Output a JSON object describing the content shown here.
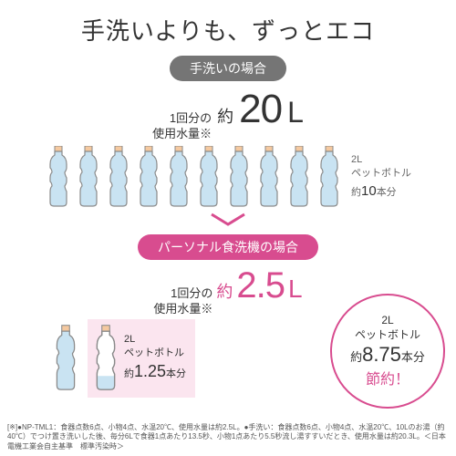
{
  "title": "手洗いよりも、ずっとエコ",
  "colors": {
    "gray": "#757575",
    "pink": "#d84c8f",
    "pinkFill": "#fbe5ef",
    "bottleOutline": "#8a8a8a",
    "bottleFill": "#c9e3f2",
    "capFill": "#f5c9a0"
  },
  "handwash": {
    "pill": "手洗いの場合",
    "usageLabel1": "1回分の",
    "usageLabel2": "使用水量※",
    "approx": "約",
    "value": "20",
    "unit": "L",
    "bottleCount": 10,
    "sideLine1": "2L",
    "sideLine2": "ペットボトル",
    "sideLine3a": "約",
    "sideLine3b": "10",
    "sideLine3c": "本分"
  },
  "dishwasher": {
    "pill": "パーソナル食洗機の場合",
    "usageLabel1": "1回分の",
    "usageLabel2": "使用水量※",
    "approx": "約",
    "value": "2.5",
    "unit": "L",
    "fullBottles": 1,
    "partialFill": 0.25,
    "boxLine1": "2L",
    "boxLine2": "ペットボトル",
    "boxLine3a": "約",
    "boxLine3b": "1.25",
    "boxLine3c": "本分"
  },
  "circle": {
    "line1": "2L",
    "line2": "ペットボトル",
    "line3a": "約",
    "line3b": "8.75",
    "line3c": "本分",
    "line4": "節約！"
  },
  "footnote": "[※]●NP-TML1：食器点数6点、小物4点、水温20℃、使用水量は約2.5L。●手洗い：食器点数6点、小物4点、水温20℃、10Lのお湯（約40℃）でつけ置き洗いした後、毎分6Lで食器1点あたり13.5秒、小物1点あたり5.5秒流し湯すすいだとき、使用水量は約20.3L。＜日本電機工業会自主基準　標準汚染時＞"
}
